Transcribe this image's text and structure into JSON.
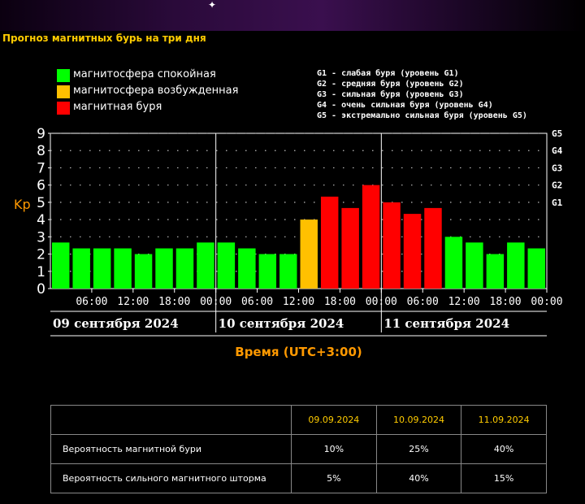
{
  "title": "Прогноз магнитных бурь на три дня",
  "legend": [
    {
      "label": "магнитосфера спокойная",
      "color": "#00ff00"
    },
    {
      "label": "магнитосфера возбужденная",
      "color": "#ffc000"
    },
    {
      "label": "магнитная буря",
      "color": "#ff0000"
    }
  ],
  "storm_levels": [
    "G1 - слабая буря (уровень G1)",
    "G2 - средняя буря (уровень G2)",
    "G3 - сильная буря (уровень G3)",
    "G4 - очень сильная буря (уровень G4)",
    "G5 - экстремально сильная буря (уровень G5)"
  ],
  "chart_data": {
    "type": "bar",
    "ylabel": "Kp",
    "xlabel": "Время (UTC+3:00)",
    "ylim": [
      0,
      9
    ],
    "yticks": [
      "0",
      "1",
      "2",
      "3",
      "4",
      "5",
      "6",
      "7",
      "8",
      "9"
    ],
    "right_ticks": [
      {
        "label": "G1",
        "kp": 5
      },
      {
        "label": "G2",
        "kp": 6
      },
      {
        "label": "G3",
        "kp": 7
      },
      {
        "label": "G4",
        "kp": 8
      },
      {
        "label": "G5",
        "kp": 9
      }
    ],
    "time_labels": [
      "06:00",
      "12:00",
      "18:00",
      "00:00",
      "06:00",
      "12:00",
      "18:00",
      "00:00",
      "06:00",
      "12:00",
      "18:00",
      "00:00"
    ],
    "days": [
      "09 сентября 2024",
      "10 сентября 2024",
      "11 сентября 2024"
    ],
    "grid": true,
    "values": [
      2.67,
      2.33,
      2.33,
      2.33,
      2.0,
      2.33,
      2.33,
      2.67,
      2.67,
      2.33,
      2.0,
      2.0,
      4.0,
      5.33,
      4.67,
      6.0,
      5.0,
      4.33,
      4.67,
      3.0,
      2.67,
      2.0,
      2.67,
      2.33
    ],
    "status": [
      "calm",
      "calm",
      "calm",
      "calm",
      "calm",
      "calm",
      "calm",
      "calm",
      "calm",
      "calm",
      "calm",
      "calm",
      "excited",
      "storm",
      "storm",
      "storm",
      "storm",
      "storm",
      "storm",
      "calm",
      "calm",
      "calm",
      "calm",
      "calm"
    ],
    "status_colors": {
      "calm": "#00ff00",
      "excited": "#ffc000",
      "storm": "#ff0000"
    }
  },
  "probability_table": {
    "dates": [
      "09.09.2024",
      "10.09.2024",
      "11.09.2024"
    ],
    "rows": [
      {
        "label": "Вероятность магнитной бури",
        "values": [
          "10%",
          "25%",
          "40%"
        ]
      },
      {
        "label": "Вероятность сильного магнитного шторма",
        "values": [
          "5%",
          "40%",
          "15%"
        ]
      }
    ]
  }
}
